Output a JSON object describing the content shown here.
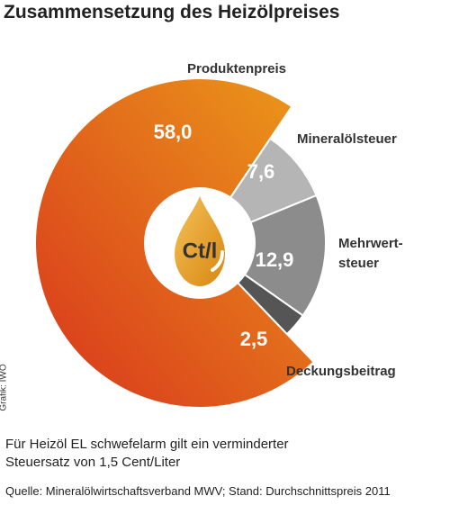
{
  "chart_data": {
    "type": "donut",
    "title": "Zusammensetzung des Heizölpreises",
    "center_label": "Ct/l",
    "categories": [
      "Produktenpreis",
      "Mineralölsteuer",
      "Mehrwert-\nsteuer",
      "Deckungsbeitrag"
    ],
    "values": [
      58.0,
      7.6,
      12.9,
      2.5
    ],
    "value_labels": [
      "58,0",
      "7,6",
      "12,9",
      "2,5"
    ],
    "colors": [
      "#e0621f",
      "#b5b5b5",
      "#8c8c8c",
      "#555555"
    ],
    "note": "Für Heizöl EL schwefelarm gilt ein verminderter\nSteuersatz von 1,5 Cent/Liter",
    "source": "Quelle: Mineralölwirtschaftsverband MWV; Stand: Durchschnittspreis 2011",
    "credit": "Grafik: IWO"
  }
}
